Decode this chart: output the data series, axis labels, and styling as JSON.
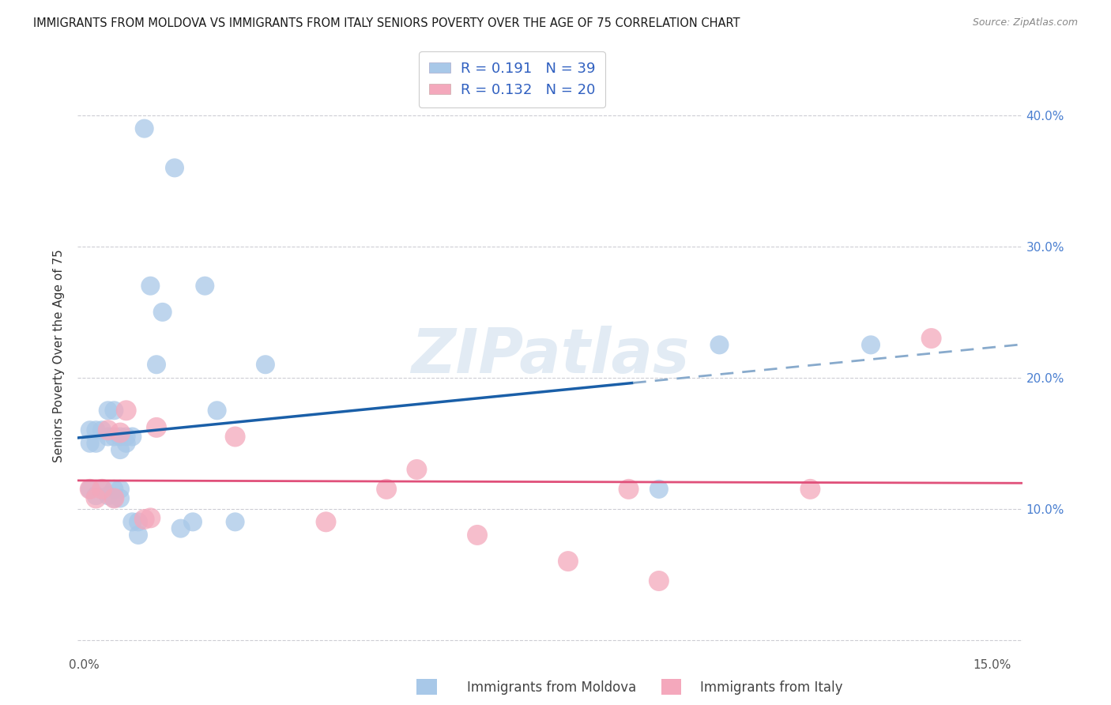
{
  "title": "IMMIGRANTS FROM MOLDOVA VS IMMIGRANTS FROM ITALY SENIORS POVERTY OVER THE AGE OF 75 CORRELATION CHART",
  "source": "Source: ZipAtlas.com",
  "ylabel": "Seniors Poverty Over the Age of 75",
  "ytick_vals": [
    0.0,
    0.1,
    0.2,
    0.3,
    0.4
  ],
  "ytick_labels": [
    "",
    "10.0%",
    "20.0%",
    "30.0%",
    "40.0%"
  ],
  "xlim": [
    -0.001,
    0.155
  ],
  "ylim": [
    -0.012,
    0.445
  ],
  "moldova_color": "#a8c8e8",
  "italy_color": "#f4a8bc",
  "moldova_line_color": "#1a5fa8",
  "italy_line_color": "#e0507a",
  "moldova_R": 0.191,
  "moldova_N": 39,
  "italy_R": 0.132,
  "italy_N": 20,
  "legend_text_color": "#3060c0",
  "moldova_scatter_x": [
    0.001,
    0.001,
    0.001,
    0.002,
    0.002,
    0.002,
    0.003,
    0.003,
    0.004,
    0.004,
    0.004,
    0.005,
    0.005,
    0.005,
    0.005,
    0.006,
    0.006,
    0.006,
    0.006,
    0.007,
    0.007,
    0.008,
    0.008,
    0.009,
    0.009,
    0.01,
    0.011,
    0.012,
    0.013,
    0.015,
    0.016,
    0.018,
    0.02,
    0.022,
    0.025,
    0.03,
    0.095,
    0.105,
    0.13
  ],
  "moldova_scatter_y": [
    0.16,
    0.15,
    0.115,
    0.16,
    0.15,
    0.11,
    0.16,
    0.115,
    0.175,
    0.155,
    0.11,
    0.175,
    0.155,
    0.115,
    0.108,
    0.155,
    0.145,
    0.115,
    0.108,
    0.155,
    0.15,
    0.155,
    0.09,
    0.09,
    0.08,
    0.39,
    0.27,
    0.21,
    0.25,
    0.36,
    0.085,
    0.09,
    0.27,
    0.175,
    0.09,
    0.21,
    0.115,
    0.225,
    0.225
  ],
  "italy_scatter_x": [
    0.001,
    0.002,
    0.003,
    0.004,
    0.005,
    0.006,
    0.007,
    0.01,
    0.011,
    0.012,
    0.025,
    0.04,
    0.05,
    0.055,
    0.065,
    0.08,
    0.09,
    0.095,
    0.12,
    0.14
  ],
  "italy_scatter_y": [
    0.115,
    0.108,
    0.115,
    0.16,
    0.108,
    0.158,
    0.175,
    0.092,
    0.093,
    0.162,
    0.155,
    0.09,
    0.115,
    0.13,
    0.08,
    0.06,
    0.115,
    0.045,
    0.115,
    0.23
  ],
  "watermark": "ZIPatlas",
  "background_color": "#ffffff",
  "grid_color": "#c8c8d0"
}
